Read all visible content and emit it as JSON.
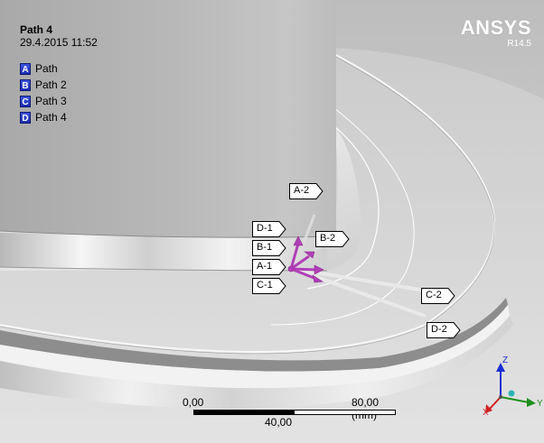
{
  "header": {
    "title": "Path 4",
    "timestamp": "29.4.2015 11:52"
  },
  "legend": [
    {
      "letter": "A",
      "label": "Path"
    },
    {
      "letter": "B",
      "label": "Path 2"
    },
    {
      "letter": "C",
      "label": "Path 3"
    },
    {
      "letter": "D",
      "label": "Path 4"
    }
  ],
  "logo": {
    "text": "ANSYS",
    "version": "R14.5"
  },
  "path_tags": {
    "a2": "A-2",
    "d1": "D-1",
    "b1": "B-1",
    "a1": "A-1",
    "c1": "C-1",
    "b2": "B-2",
    "c2": "C-2",
    "d2": "D-2"
  },
  "scale": {
    "start": "0,00",
    "mid": "40,00",
    "end": "80,00 (mm)"
  },
  "triad": {
    "x": "X",
    "y": "Y",
    "z": "Z"
  },
  "colors": {
    "legend_swatch": "#2b3fd0",
    "path_arrow": "#b13fb8",
    "triad_z": "#1a2fd0",
    "triad_y": "#1f8f1f",
    "triad_x": "#d02020"
  }
}
